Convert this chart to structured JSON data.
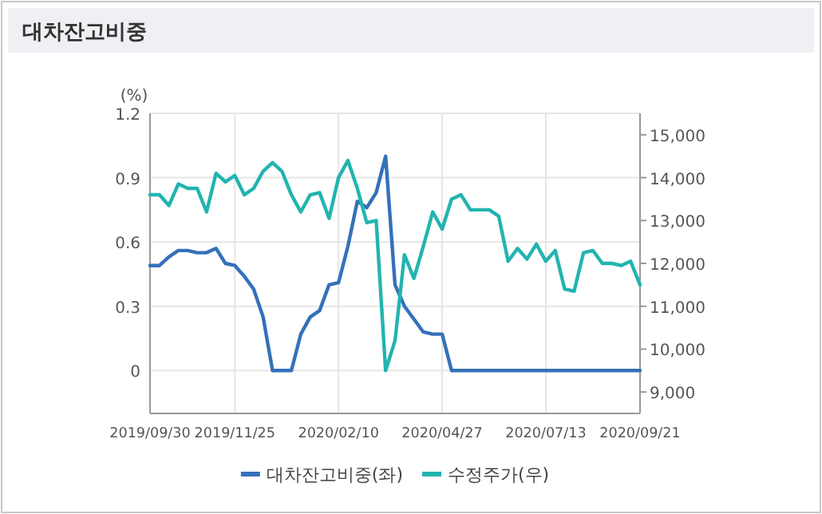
{
  "chart_data": {
    "type": "line",
    "title": "대차잔고비중",
    "ylabel": "(%)",
    "categories": [
      "2019/09/30",
      null,
      null,
      null,
      null,
      null,
      null,
      null,
      null,
      "2019/11/25",
      null,
      null,
      null,
      null,
      null,
      null,
      null,
      null,
      null,
      null,
      "2020/02/10",
      null,
      null,
      null,
      null,
      null,
      null,
      null,
      null,
      null,
      null,
      "2020/04/27",
      null,
      null,
      null,
      null,
      null,
      null,
      null,
      null,
      null,
      null,
      "2020/07/13",
      null,
      null,
      null,
      null,
      null,
      null,
      null,
      null,
      null,
      "2020/09/21"
    ],
    "series": [
      {
        "name": "대차잔고비중(좌)",
        "color": "#3471b9",
        "values": [
          0.49,
          0.49,
          0.53,
          0.56,
          0.56,
          0.55,
          0.55,
          0.57,
          0.5,
          0.49,
          0.44,
          0.38,
          0.25,
          0,
          0,
          0,
          0.17,
          0.25,
          0.28,
          0.4,
          0.41,
          0.58,
          0.79,
          0.76,
          0.83,
          1.0,
          0.4,
          0.3,
          0.24,
          0.18,
          0.17,
          0.17,
          0,
          0,
          0,
          0,
          0,
          0,
          0,
          0,
          0,
          0,
          0,
          0,
          0,
          0,
          0,
          0,
          0,
          0,
          0,
          0,
          0
        ]
      },
      {
        "name": "수정주가(우)",
        "color": "#22b4b0",
        "axis": "y2",
        "values": [
          13600,
          13600,
          13350,
          13850,
          13750,
          13750,
          13200,
          14100,
          13900,
          14050,
          13600,
          13750,
          14150,
          14350,
          14150,
          13600,
          13200,
          13600,
          13650,
          13050,
          14000,
          14400,
          13750,
          12950,
          13000,
          9500,
          10200,
          12200,
          11650,
          12400,
          13200,
          12800,
          13500,
          13600,
          13250,
          13250,
          13250,
          13100,
          12050,
          12350,
          12100,
          12450,
          12050,
          12300,
          11400,
          11350,
          12250,
          12300,
          12000,
          12000,
          11950,
          12050,
          11500
        ]
      }
    ],
    "ylim": [
      -0.2,
      1.2
    ],
    "yticks": [
      0,
      0.3,
      0.6,
      0.9,
      1.2
    ],
    "y2lim": [
      8500,
      15500
    ],
    "y2ticks": [
      {
        "value": 9000,
        "label": "9,000"
      },
      {
        "value": 10000,
        "label": "10,000"
      },
      {
        "value": 11000,
        "label": "11,000"
      },
      {
        "value": 12000,
        "label": "12,000"
      },
      {
        "value": 13000,
        "label": "13,000"
      },
      {
        "value": 14000,
        "label": "14,000"
      },
      {
        "value": 15000,
        "label": "15,000"
      }
    ],
    "grid": true,
    "legend": "bottom",
    "marker": "none",
    "line_style": "solid"
  }
}
